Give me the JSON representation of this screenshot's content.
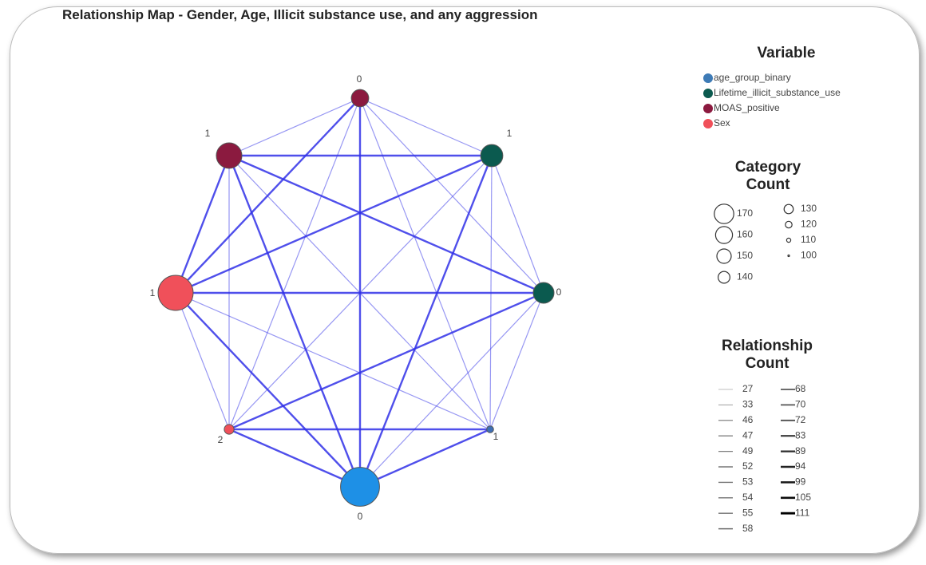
{
  "title": "Relationship Map - Gender, Age, Illicit substance use, and any aggression",
  "nodes": [
    {
      "label": "0",
      "color": "#8b1a3f",
      "count": 123
    },
    {
      "label": "1",
      "color": "#0b5a4f",
      "count": 133
    },
    {
      "label": "0",
      "color": "#0b5a4f",
      "count": 130
    },
    {
      "label": "1",
      "color": "#3e6fb6",
      "count": 101
    },
    {
      "label": "0",
      "color": "#1e90e6",
      "count": 168
    },
    {
      "label": "2",
      "color": "#f0505a",
      "count": 107
    },
    {
      "label": "1",
      "color": "#f0505a",
      "count": 160
    },
    {
      "label": "1",
      "color": "#8b1a3f",
      "count": 140
    }
  ],
  "legend": {
    "variable": {
      "title": "Variable",
      "items": [
        {
          "name": "age_group_binary",
          "color": "#3e7bb6"
        },
        {
          "name": "Lifetime_illicit_substance_use",
          "color": "#0b5a4f"
        },
        {
          "name": "MOAS_positive",
          "color": "#8b1a3f"
        },
        {
          "name": "Sex",
          "color": "#f0505a"
        }
      ]
    },
    "category_count": {
      "title": "Category Count",
      "values": [
        170,
        160,
        150,
        140,
        130,
        120,
        110,
        100
      ]
    },
    "relationship_count": {
      "title": "Relationship Count",
      "values": [
        27,
        33,
        46,
        47,
        49,
        52,
        53,
        54,
        55,
        58,
        68,
        70,
        72,
        83,
        89,
        94,
        99,
        105,
        111
      ]
    }
  }
}
